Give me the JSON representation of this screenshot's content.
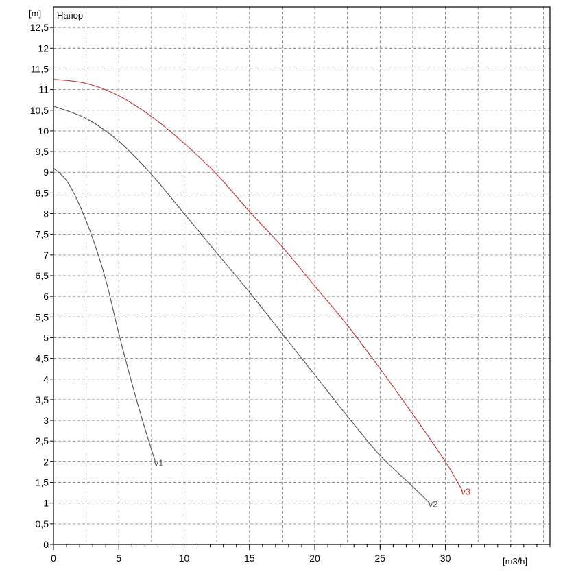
{
  "chart_data": {
    "type": "line",
    "title": "Напор",
    "y_unit": "[m]",
    "x_unit": "[m3/h]",
    "xlim": [
      0,
      38
    ],
    "ylim": [
      0,
      13
    ],
    "x_ticks": [
      0,
      5,
      10,
      15,
      20,
      25,
      30
    ],
    "x_tick_labels": [
      "0",
      "5",
      "10",
      "15",
      "20",
      "25",
      "30"
    ],
    "y_ticks": [
      0,
      0.5,
      1,
      1.5,
      2,
      2.5,
      3,
      3.5,
      4,
      4.5,
      5,
      5.5,
      6,
      6.5,
      7,
      7.5,
      8,
      8.5,
      9,
      9.5,
      10,
      10.5,
      11,
      11.5,
      12,
      12.5
    ],
    "y_tick_labels": [
      "0",
      "0,5",
      "1",
      "1,5",
      "2",
      "2,5",
      "3",
      "3,5",
      "4",
      "4,5",
      "5",
      "5,5",
      "6",
      "6,5",
      "7",
      "7,5",
      "8",
      "8,5",
      "9",
      "9,5",
      "10",
      "10,5",
      "11",
      "11,5",
      "12",
      "12,5"
    ],
    "grid": true,
    "series": [
      {
        "name": "v1",
        "color": "#505050",
        "x": [
          0,
          1,
          2,
          3,
          4,
          5,
          6,
          7,
          7.8
        ],
        "y": [
          9.1,
          8.8,
          8.2,
          7.4,
          6.4,
          5.1,
          3.9,
          2.8,
          2.0
        ]
      },
      {
        "name": "v2",
        "color": "#505050",
        "x": [
          0,
          2.5,
          5,
          7.5,
          10,
          12.5,
          15,
          17.5,
          20,
          22.5,
          25,
          27.5,
          28.8
        ],
        "y": [
          10.6,
          10.3,
          9.75,
          8.95,
          8.0,
          7.05,
          6.1,
          5.1,
          4.1,
          3.1,
          2.15,
          1.4,
          1.0
        ]
      },
      {
        "name": "v3",
        "color": "#c03030",
        "x": [
          0,
          2.5,
          5,
          7.5,
          10,
          12.5,
          15,
          17.5,
          20,
          22.5,
          25,
          27.5,
          30,
          31.3
        ],
        "y": [
          11.25,
          11.15,
          10.85,
          10.35,
          9.7,
          8.95,
          8.05,
          7.2,
          6.25,
          5.3,
          4.25,
          3.15,
          2.0,
          1.3
        ]
      }
    ]
  }
}
